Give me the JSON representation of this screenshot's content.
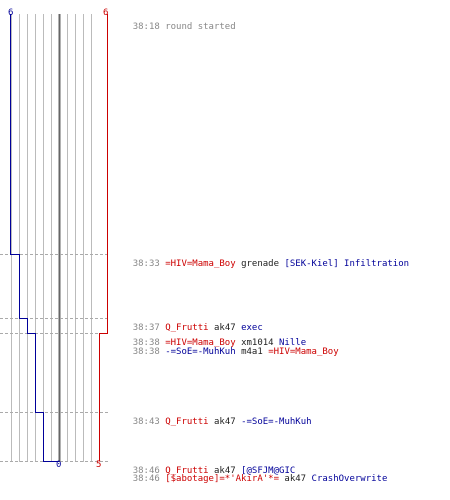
{
  "colors": {
    "team_a": "#000099",
    "team_b": "#cc0000",
    "grid": "#bbbbbb",
    "time": "#888888",
    "weapon": "#222222"
  },
  "scores": {
    "team_a_start": "6",
    "team_b_start": "6",
    "team_a_end": "0",
    "team_b_end": "5"
  },
  "events": [
    {
      "time": "38:18",
      "killer": "",
      "weapon": "",
      "victim": "",
      "note": "round started"
    },
    {
      "time": "38:33",
      "killer": "=HIV=Mama_Boy",
      "weapon": "grenade",
      "victim": "[SEK-Kiel] Infiltration"
    },
    {
      "time": "38:37",
      "killer": "Q_Frutti",
      "weapon": "ak47",
      "victim": "exec"
    },
    {
      "time": "38:38",
      "killer": "=HIV=Mama_Boy",
      "weapon": "xm1014",
      "victim": "Nille"
    },
    {
      "time": "38:38",
      "killer": "-=SoE=-MuhKuh",
      "weapon": "m4a1",
      "victim": "=HIV=Mama_Boy"
    },
    {
      "time": "38:43",
      "killer": "Q_Frutti",
      "weapon": "ak47",
      "victim": "-=SoE=-MuhKuh"
    },
    {
      "time": "38:46",
      "killer": "Q_Frutti",
      "weapon": "ak47",
      "victim": "[@SFJM@GIC"
    },
    {
      "time": "38:46",
      "killer": "[$abotage]=*'AkirA'*=",
      "weapon": "ak47",
      "victim": "CrashOverwrite"
    }
  ]
}
